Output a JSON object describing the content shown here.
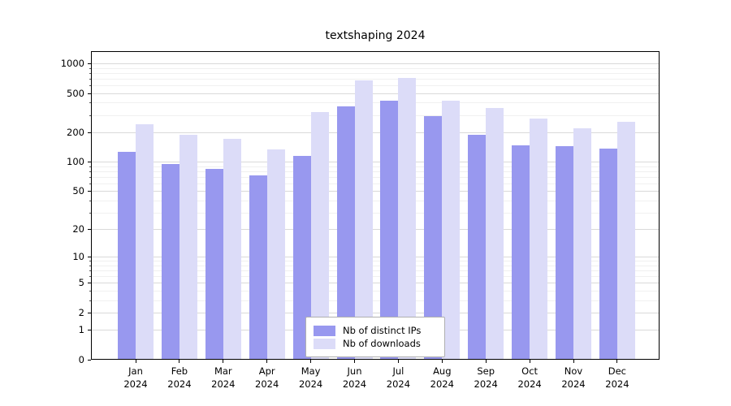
{
  "chart_data": {
    "type": "bar",
    "title": "textshaping 2024",
    "x_tick_second_line": "2024",
    "categories": [
      "Jan",
      "Feb",
      "Mar",
      "Apr",
      "May",
      "Jun",
      "Jul",
      "Aug",
      "Sep",
      "Oct",
      "Nov",
      "Dec"
    ],
    "series": [
      {
        "name": "Nb of distinct IPs",
        "color": "#9898ef",
        "values": [
          126,
          95,
          84,
          73,
          115,
          366,
          418,
          292,
          190,
          146,
          144,
          137
        ]
      },
      {
        "name": "Nb of downloads",
        "color": "#dcdcf8",
        "values": [
          240,
          190,
          170,
          133,
          320,
          672,
          711,
          418,
          353,
          276,
          219,
          255
        ]
      }
    ],
    "y_axis": {
      "scale": "log1p",
      "major_ticks": [
        0,
        1,
        2,
        5,
        10,
        20,
        50,
        100,
        200,
        500,
        1000
      ],
      "minor_ticks": [
        3,
        4,
        6,
        7,
        8,
        9,
        30,
        40,
        60,
        70,
        80,
        90,
        300,
        400,
        600,
        700,
        800,
        900
      ],
      "ylim": [
        0,
        1330
      ]
    },
    "grid": true,
    "legend_position": "lower center inside"
  },
  "colors": {
    "grid_major": "#d9d9d9",
    "grid_minor": "#f0f0f0",
    "axis": "#000000",
    "background": "#ffffff"
  }
}
